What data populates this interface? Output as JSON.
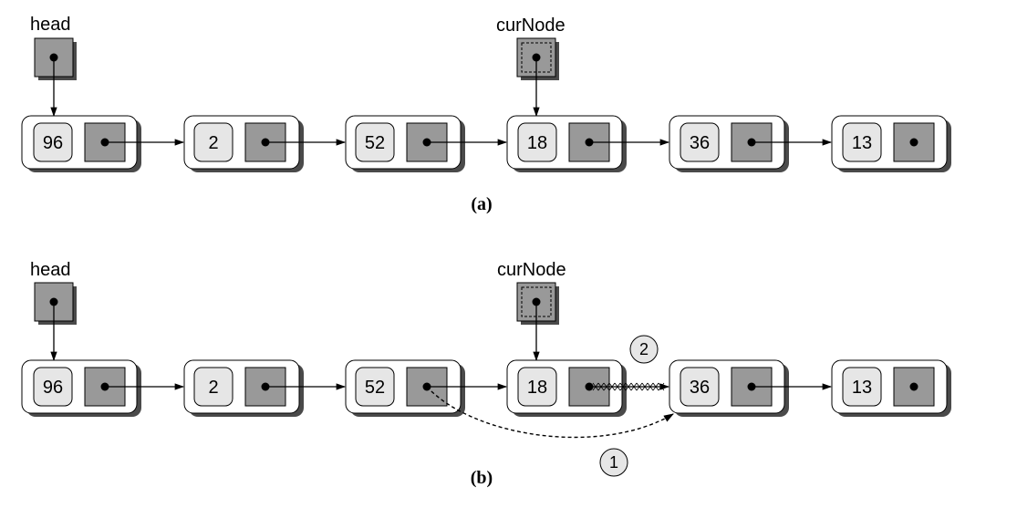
{
  "diagram_a": {
    "head_label": "head",
    "cur_label": "curNode",
    "nodes": [
      "96",
      "2",
      "52",
      "18",
      "36",
      "13"
    ],
    "caption": "(a)"
  },
  "diagram_b": {
    "head_label": "head",
    "cur_label": "curNode",
    "nodes": [
      "96",
      "2",
      "52",
      "18",
      "36",
      "13"
    ],
    "step1": "1",
    "step2": "2",
    "caption": "(b)"
  },
  "colors": {
    "shadow": "#4a4a4a",
    "value_fill": "#e6e6e6",
    "pointer_fill": "#999999",
    "stroke": "#000000"
  }
}
